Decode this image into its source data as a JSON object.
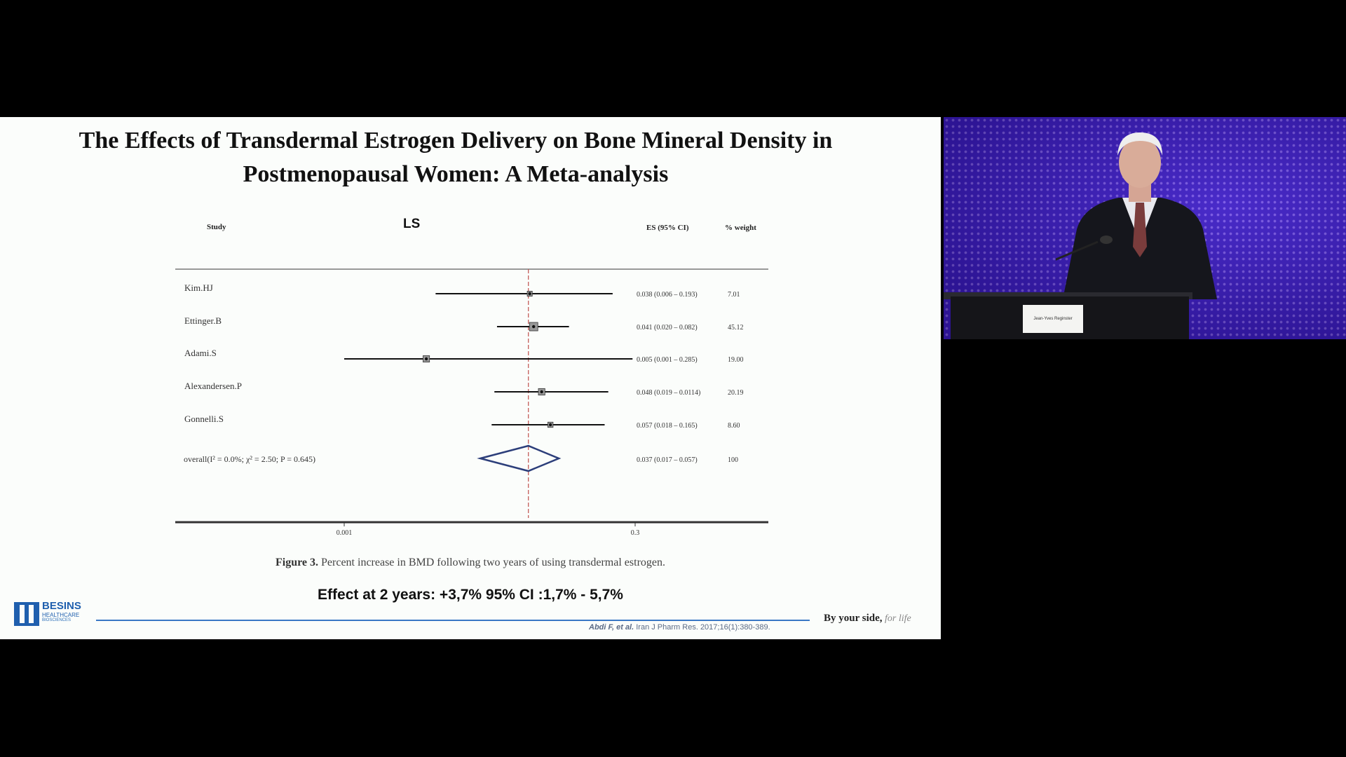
{
  "slide": {
    "title_line1": "The Effects of Transdermal Estrogen Delivery on Bone Mineral Density in",
    "title_line2": "Postmenopausal Women: A Meta-analysis",
    "panel_label": "LS",
    "col_study": "Study",
    "col_es": "ES (95% CI)",
    "col_weight": "% weight",
    "caption_bold": "Figure 3.",
    "caption_text": " Percent increase in BMD following two years of using transdermal estrogen.",
    "effect_text": "Effect at 2 years: +3,7%  95% CI :1,7% - 5,7%",
    "reference_italic": "Abdi F, et al.",
    "reference_text": " Iran J Pharm Res. 2017;16(1):380-389.",
    "tagline_bold": "By your side,",
    "tagline_italic": " for life",
    "logo": {
      "line1": "BESINS",
      "line2": "HEALTHCARE",
      "line3": "BIOSCIENCES"
    }
  },
  "chart_data": {
    "type": "scatter",
    "subtype": "forest",
    "title": "LS",
    "studies": [
      {
        "name": "Kim.HJ",
        "es": 0.038,
        "ci": [
          0.006,
          0.193
        ],
        "es_text": "0.038 (0.006 – 0.193)",
        "weight": "7.01"
      },
      {
        "name": "Ettinger.B",
        "es": 0.041,
        "ci": [
          0.02,
          0.082
        ],
        "es_text": "0.041 (0.020 – 0.082)",
        "weight": "45.12"
      },
      {
        "name": "Adami.S",
        "es": 0.005,
        "ci": [
          0.001,
          0.285
        ],
        "es_text": "0.005 (0.001 – 0.285)",
        "weight": "19.00"
      },
      {
        "name": "Alexandersen.P",
        "es": 0.048,
        "ci": [
          0.019,
          0.0114
        ],
        "es_text": "0.048 (0.019 – 0.0114)",
        "weight": "20.19"
      },
      {
        "name": "Gonnelli.S",
        "es": 0.057,
        "ci": [
          0.018,
          0.165
        ],
        "es_text": "0.057 (0.018 – 0.165)",
        "weight": "8.60"
      }
    ],
    "overall": {
      "label": "overall(I² = 0.0%; χ² = 2.50; P = 0.645)",
      "es": 0.037,
      "ci": [
        0.017,
        0.057
      ],
      "es_text": "0.037 (0.017 – 0.057)",
      "weight": "100"
    },
    "x_ticks": [
      "0.001",
      "0.3"
    ],
    "reference_line": 0.037,
    "colors": {
      "diamond": "#2c3e7a",
      "reference": "#c0504d",
      "axis": "#333333"
    }
  },
  "speaker": {
    "name_card": "Jean-Yves Reginster",
    "background_color": "#3a1fb8"
  }
}
